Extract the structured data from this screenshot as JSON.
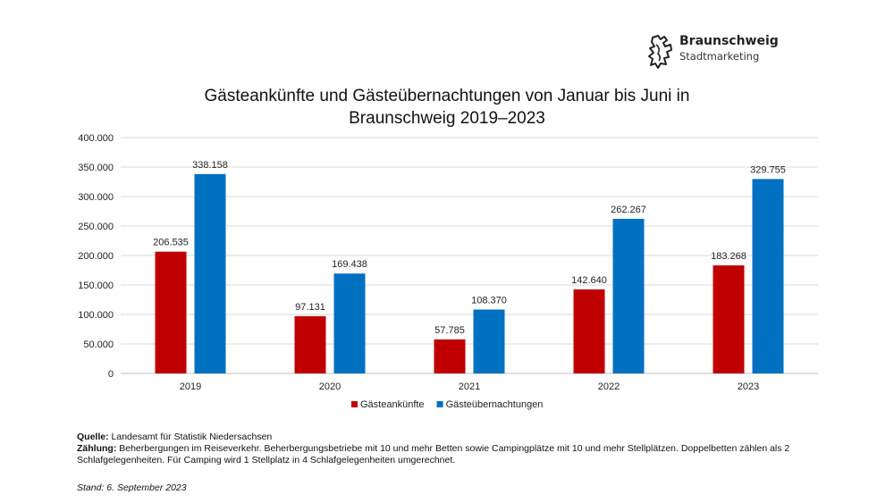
{
  "logo": {
    "name": "Braunschweig",
    "subtitle": "Stadtmarketing"
  },
  "colors": {
    "series1": "#c00000",
    "series2": "#0070c0",
    "grid": "#d9d9d9"
  },
  "chart_data": {
    "type": "bar",
    "title": "Gästeankünfte und Gästeübernachtungen von Januar bis Juni in Braunschweig 2019–2023",
    "title_lines": [
      "Gästeankünfte und Gästeübernachtungen von Januar bis Juni in",
      "Braunschweig 2019–2023"
    ],
    "categories": [
      "2019",
      "2020",
      "2021",
      "2022",
      "2023"
    ],
    "series": [
      {
        "name": "Gästeankünfte",
        "values": [
          206535,
          97131,
          57785,
          142640,
          183268
        ],
        "labels": [
          "206.535",
          "97.131",
          "57.785",
          "142.640",
          "183.268"
        ]
      },
      {
        "name": "Gästeübernachtungen",
        "values": [
          338158,
          169438,
          108370,
          262267,
          329755
        ],
        "labels": [
          "338.158",
          "169.438",
          "108.370",
          "262.267",
          "329.755"
        ]
      }
    ],
    "ylim": [
      0,
      400000
    ],
    "yticks": [
      "0",
      "50.000",
      "100.000",
      "150.000",
      "200.000",
      "250.000",
      "300.000",
      "350.000",
      "400.000"
    ],
    "grid": true,
    "legend": "bottom-center"
  },
  "notes": {
    "source_label": "Quelle:",
    "source_text": " Landesamt für Statistik Niedersachsen",
    "count_label": "Zählung:",
    "count_text": " Beherbergungen im Reiseverkehr. Beherbergungsbetriebe mit 10 und mehr Betten sowie Campingplätze mit 10 und mehr Stellplätzen. Doppelbetten zählen als 2 Schlafgelegenheiten. Für Camping wird 1 Stellplatz in 4 Schlafgelegenheiten umgerechnet.",
    "stand": "Stand: 6. September 2023"
  }
}
